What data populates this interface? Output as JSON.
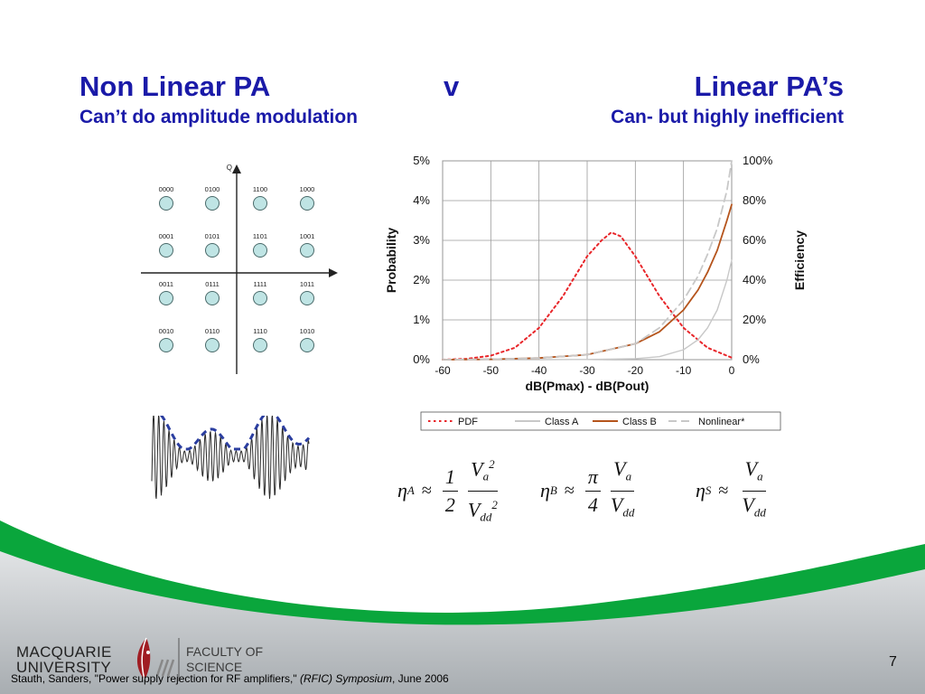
{
  "title": {
    "left": "Non Linear PA",
    "middle": "v",
    "right": "Linear PA’s",
    "left_sub": "Can’t do amplitude modulation",
    "right_sub": "Can- but highly inefficient"
  },
  "constellation": {
    "axis_label": "Q",
    "points": [
      "0000",
      "0100",
      "1100",
      "1000",
      "0001",
      "0101",
      "1101",
      "1001",
      "0011",
      "0111",
      "1111",
      "1011",
      "0010",
      "0110",
      "1110",
      "1010"
    ]
  },
  "chart_data": {
    "type": "line",
    "xlabel": "dB(Pmax) - dB(Pout)",
    "ylabel_left": "Probability",
    "ylabel_right": "Efficiency",
    "x_ticks": [
      "-60",
      "-50",
      "-40",
      "-30",
      "-20",
      "-10",
      "0"
    ],
    "y_left_ticks": [
      "0%",
      "1%",
      "2%",
      "3%",
      "4%",
      "5%"
    ],
    "y_right_ticks": [
      "0%",
      "20%",
      "40%",
      "60%",
      "80%",
      "100%"
    ],
    "xlim": [
      -60,
      0
    ],
    "ylim_left": [
      0,
      5
    ],
    "ylim_right": [
      0,
      100
    ],
    "grid": true,
    "legend_position": "bottom",
    "series": [
      {
        "name": "PDF",
        "axis": "left",
        "color": "#e8262a",
        "style": "dotted",
        "x": [
          -60,
          -55,
          -50,
          -45,
          -40,
          -35,
          -30,
          -27,
          -25,
          -23,
          -20,
          -15,
          -10,
          -5,
          0
        ],
        "y": [
          0.0,
          0.02,
          0.1,
          0.3,
          0.8,
          1.6,
          2.6,
          3.0,
          3.2,
          3.1,
          2.6,
          1.6,
          0.8,
          0.3,
          0.05
        ]
      },
      {
        "name": "Class A",
        "axis": "right",
        "color": "#c8c8c8",
        "style": "solid",
        "x": [
          -60,
          -40,
          -30,
          -20,
          -15,
          -10,
          -7,
          -5,
          -3,
          -1,
          0
        ],
        "y": [
          0,
          0,
          0.1,
          0.5,
          1.5,
          5,
          10,
          16,
          25,
          40,
          50
        ]
      },
      {
        "name": "Class B",
        "axis": "right",
        "color": "#b5541c",
        "style": "solid",
        "x": [
          -60,
          -50,
          -40,
          -30,
          -20,
          -15,
          -10,
          -7,
          -5,
          -3,
          -1,
          0
        ],
        "y": [
          0,
          0.2,
          0.8,
          2.5,
          8,
          14,
          25,
          35,
          44,
          55,
          70,
          78
        ]
      },
      {
        "name": "Nonlinear*",
        "axis": "right",
        "color": "#c8c8c8",
        "style": "dashed",
        "x": [
          -60,
          -50,
          -40,
          -30,
          -20,
          -15,
          -10,
          -7,
          -5,
          -3,
          -1,
          0
        ],
        "y": [
          0,
          0.2,
          0.8,
          2.5,
          8,
          16,
          30,
          42,
          53,
          66,
          85,
          100
        ]
      }
    ]
  },
  "equations": {
    "a": {
      "eta": "η",
      "sub": "A",
      "approx": "≈",
      "c_num": "1",
      "c_den": "2",
      "num": "V",
      "num_sub": "a",
      "num_sup": "2",
      "den": "V",
      "den_sub": "dd",
      "den_sup": "2"
    },
    "b": {
      "eta": "η",
      "sub": "B",
      "approx": "≈",
      "c_num": "π",
      "c_den": "4",
      "num": "V",
      "num_sub": "a",
      "den": "V",
      "den_sub": "dd"
    },
    "s": {
      "eta": "η",
      "sub": "S",
      "approx": "≈",
      "num": "V",
      "num_sub": "a",
      "den": "V",
      "den_sub": "dd"
    }
  },
  "logo": {
    "line1": "MACQUARIE",
    "line2": "UNIVERSITY",
    "faculty1": "FACULTY OF",
    "faculty2": "SCIENCE"
  },
  "citation": {
    "text": "Stauth, Sanders, \"Power supply rejection for RF amplifiers,\" ",
    "venue": "(RFIC) Symposium",
    "date": ", June 2006"
  },
  "page_number": "7",
  "colors": {
    "title": "#1a1aa8",
    "wave_green": "#0aa63c",
    "wave_gray": "#c9cbce",
    "constellation_fill": "#bfe4e4",
    "logo_red": "#a01d23"
  }
}
